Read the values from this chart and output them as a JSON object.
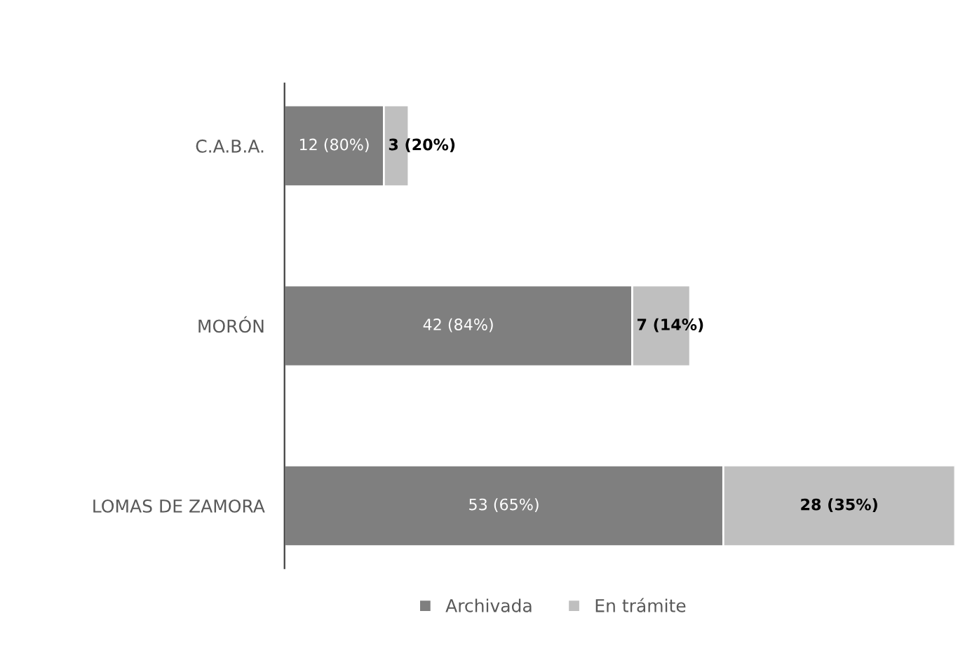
{
  "chart_data": {
    "type": "bar",
    "orientation": "horizontal",
    "stacked": true,
    "categories": [
      "C.A.B.A.",
      "MORÓN",
      "LOMAS DE ZAMORA"
    ],
    "series": [
      {
        "name": "Archivada",
        "color": "#7f7f7f",
        "values": [
          12,
          42,
          53
        ],
        "value_labels": [
          "12 (80%)",
          "42 (84%)",
          "53 (65%)"
        ]
      },
      {
        "name": "En trámite",
        "color": "#bfbfbf",
        "values": [
          3,
          7,
          28
        ],
        "value_labels": [
          "3 (20%)",
          "7 (14%)",
          "28 (35%)"
        ]
      }
    ],
    "legend": "bottom",
    "grid": false
  }
}
